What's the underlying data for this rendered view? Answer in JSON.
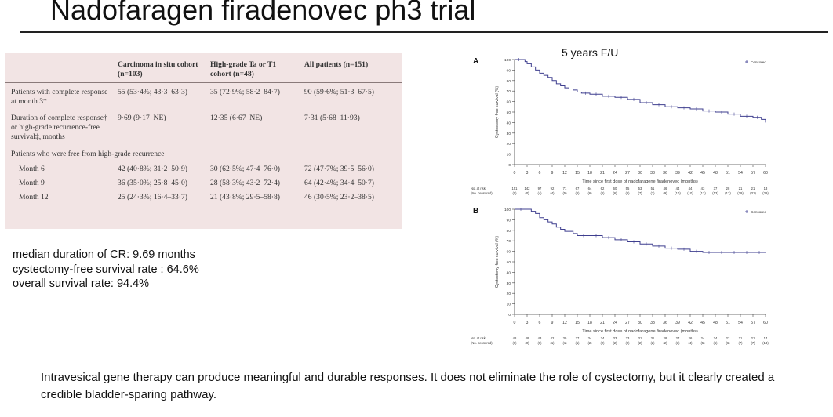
{
  "slide": {
    "title": "Nadofaragen firadenovec ph3 trial",
    "followup_label": "5 years F/U",
    "summary_lines": [
      "median duration of CR: 9.69 months",
      "cystectomy-free survival rate : 64.6%",
      "overall survival rate: 94.4%"
    ],
    "conclusion": "Intravesical gene therapy can produce meaningful and durable responses. It does not eliminate the role of cystectomy, but it clearly created a credible bladder-sparing pathway."
  },
  "table": {
    "headers": [
      "",
      "Carcinoma in situ cohort (n=103)",
      "High-grade Ta or T1 cohort (n=48)",
      "All patients (n=151)"
    ],
    "rows": [
      [
        "Patients with complete response at month 3*",
        "55 (53·4%; 43·3–63·3)",
        "35 (72·9%; 58·2–84·7)",
        "90 (59·6%; 51·3–67·5)"
      ],
      [
        "Duration of complete response† or high-grade recurrence-free survival‡, months",
        "9·69 (9·17–NE)",
        "12·35 (6·67–NE)",
        "7·31 (5·68–11·93)"
      ]
    ],
    "section_label": "Patients who were free from high-grade recurrence",
    "sub_rows": [
      [
        "Month 6",
        "42 (40·8%; 31·2–50·9)",
        "30 (62·5%; 47·4–76·0)",
        "72 (47·7%; 39·5–56·0)"
      ],
      [
        "Month 9",
        "36 (35·0%; 25·8–45·0)",
        "28 (58·3%; 43·2–72·4)",
        "64 (42·4%; 34·4–50·7)"
      ],
      [
        "Month 12",
        "25 (24·3%; 16·4–33·7)",
        "21 (43·8%; 29·5–58·8)",
        "46 (30·5%; 23·2–38·5)"
      ]
    ]
  },
  "chart_data": [
    {
      "type": "line",
      "panel_label": "A",
      "title": "",
      "xlabel": "Time since first dose of nadofaragene firadenovec (months)",
      "ylabel": "Cystectomy-free survival (%)",
      "xlim": [
        0,
        60
      ],
      "ylim": [
        0,
        100
      ],
      "xticks": [
        0,
        3,
        6,
        9,
        12,
        15,
        18,
        21,
        24,
        27,
        30,
        33,
        36,
        39,
        42,
        45,
        48,
        51,
        54,
        57,
        60
      ],
      "yticks": [
        0,
        10,
        20,
        30,
        40,
        50,
        60,
        70,
        80,
        90,
        100
      ],
      "legend": "Censored",
      "legend_position": "top-right",
      "series": [
        {
          "x": [
            0,
            2,
            2.5,
            3,
            4,
            5,
            6,
            7,
            8,
            9,
            10,
            11,
            12,
            13,
            14,
            15,
            16,
            18,
            21,
            24,
            27,
            30,
            33,
            36,
            39,
            42,
            45,
            48,
            51,
            54,
            57,
            59,
            60
          ],
          "y": [
            100,
            100,
            98,
            96,
            93,
            90,
            87,
            85,
            83,
            80,
            77,
            75,
            73,
            72,
            71,
            69,
            68,
            67,
            65,
            64,
            62,
            59,
            57,
            55,
            54,
            53,
            51,
            50,
            48,
            46,
            45,
            43,
            40
          ]
        }
      ],
      "at_risk_label": [
        "No. at risk",
        "(No. censored)"
      ],
      "at_risk": [
        "151",
        "142",
        "97",
        "92",
        "71",
        "67",
        "64",
        "62",
        "60",
        "55",
        "53",
        "51",
        "46",
        "44",
        "44",
        "43",
        "37",
        "28",
        "21",
        "21",
        "13"
      ],
      "censored": [
        "(0)",
        "(0)",
        "(4)",
        "(4)",
        "(5)",
        "(6)",
        "(6)",
        "(6)",
        "(6)",
        "(6)",
        "(7)",
        "(7)",
        "(9)",
        "(10)",
        "(10)",
        "(13)",
        "(13)",
        "(17)",
        "(29)",
        "(31)",
        "(39)"
      ]
    },
    {
      "type": "line",
      "panel_label": "B",
      "title": "",
      "xlabel": "Time since first dose of nadofaragene firadenovec (months)",
      "ylabel": "Cystectomy-free survival (%)",
      "xlim": [
        0,
        60
      ],
      "ylim": [
        0,
        100
      ],
      "xticks": [
        0,
        3,
        6,
        9,
        12,
        15,
        18,
        21,
        24,
        27,
        30,
        33,
        36,
        39,
        42,
        45,
        48,
        51,
        54,
        57,
        60
      ],
      "yticks": [
        0,
        10,
        20,
        30,
        40,
        50,
        60,
        70,
        80,
        90,
        100
      ],
      "legend": "Censored",
      "legend_position": "top-right",
      "series": [
        {
          "x": [
            0,
            3,
            4,
            5,
            6,
            7,
            8,
            9,
            10,
            11,
            12,
            14,
            15,
            18,
            21,
            24,
            27,
            30,
            33,
            36,
            39,
            42,
            45,
            48,
            51,
            54,
            57,
            60
          ],
          "y": [
            100,
            100,
            98,
            96,
            92,
            90,
            88,
            86,
            83,
            81,
            79,
            77,
            75,
            75,
            73,
            71,
            69,
            67,
            65,
            63,
            62,
            60,
            59,
            59,
            59,
            59,
            59,
            59
          ]
        }
      ],
      "at_risk_label": [
        "No. at risk",
        "(No. censored)"
      ],
      "at_risk": [
        "48",
        "48",
        "43",
        "42",
        "39",
        "37",
        "34",
        "34",
        "33",
        "33",
        "31",
        "31",
        "28",
        "27",
        "26",
        "24",
        "24",
        "22",
        "21",
        "21",
        "14"
      ],
      "censored": [
        "(0)",
        "(0)",
        "(0)",
        "(1)",
        "(1)",
        "(1)",
        "(2)",
        "(2)",
        "(2)",
        "(2)",
        "(2)",
        "(2)",
        "(2)",
        "(3)",
        "(4)",
        "(5)",
        "(5)",
        "(6)",
        "(7)",
        "(7)",
        "(13)"
      ]
    }
  ]
}
